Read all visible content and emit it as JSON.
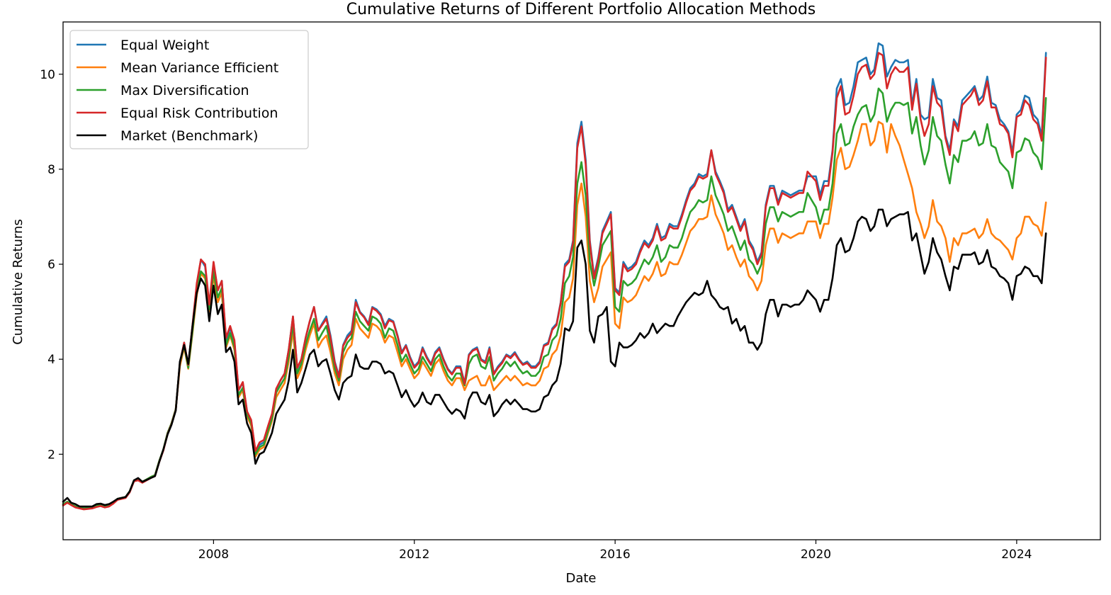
{
  "chart_data": {
    "type": "line",
    "title": "Cumulative Returns of Different Portfolio Allocation Methods",
    "xlabel": "Date",
    "ylabel": "Cumulative Returns",
    "xlim": [
      "2005-01-01",
      "2025-09-01"
    ],
    "ylim": [
      0.2,
      11.1
    ],
    "x_ticks": [
      "2008-01-01",
      "2012-01-01",
      "2016-01-01",
      "2020-01-01",
      "2024-01-01"
    ],
    "x_tick_labels": [
      "2008",
      "2012",
      "2016",
      "2020",
      "2024"
    ],
    "y_ticks": [
      2,
      4,
      6,
      8,
      10
    ],
    "y_tick_labels": [
      "2",
      "4",
      "6",
      "8",
      "10"
    ],
    "grid": false,
    "legend_position": "top-left",
    "start_date": "2005-01-01",
    "frequency": "monthly",
    "series": [
      {
        "name": "Equal Weight",
        "color": "#1f77b4",
        "values": [
          0.95,
          1.0,
          0.95,
          0.9,
          0.88,
          0.86,
          0.87,
          0.88,
          0.91,
          0.93,
          0.9,
          0.92,
          0.98,
          1.06,
          1.08,
          1.1,
          1.22,
          1.45,
          1.47,
          1.42,
          1.47,
          1.52,
          1.56,
          1.85,
          2.1,
          2.45,
          2.65,
          2.95,
          3.9,
          4.35,
          3.85,
          4.7,
          5.55,
          6.1,
          5.95,
          5.1,
          6.0,
          5.45,
          5.65,
          4.4,
          4.65,
          4.35,
          3.35,
          3.5,
          2.9,
          2.7,
          2.05,
          2.2,
          2.25,
          2.55,
          2.8,
          3.35,
          3.55,
          3.7,
          4.2,
          4.9,
          3.8,
          4.0,
          4.45,
          4.8,
          5.1,
          4.6,
          4.75,
          4.9,
          4.5,
          3.95,
          3.65,
          4.3,
          4.5,
          4.6,
          5.25,
          5.0,
          4.9,
          4.75,
          5.1,
          5.05,
          4.95,
          4.7,
          4.85,
          4.8,
          4.5,
          4.15,
          4.3,
          4.05,
          3.85,
          3.95,
          4.25,
          4.05,
          3.9,
          4.15,
          4.25,
          4.0,
          3.8,
          3.7,
          3.85,
          3.85,
          3.5,
          4.1,
          4.2,
          4.25,
          4.0,
          3.95,
          4.25,
          3.7,
          3.85,
          3.95,
          4.1,
          4.05,
          4.15,
          4.0,
          3.9,
          3.95,
          3.85,
          3.85,
          3.95,
          4.3,
          4.35,
          4.65,
          4.75,
          5.2,
          6.0,
          6.1,
          6.5,
          8.55,
          9.0,
          8.2,
          6.5,
          5.75,
          6.15,
          6.7,
          6.9,
          7.1,
          5.5,
          5.4,
          6.05,
          5.9,
          5.95,
          6.05,
          6.3,
          6.5,
          6.4,
          6.55,
          6.85,
          6.55,
          6.6,
          6.85,
          6.8,
          6.8,
          7.05,
          7.35,
          7.6,
          7.7,
          7.9,
          7.85,
          7.9,
          8.4,
          7.95,
          7.75,
          7.55,
          7.15,
          7.25,
          7.0,
          6.75,
          6.95,
          6.5,
          6.35,
          6.05,
          6.25,
          7.25,
          7.65,
          7.65,
          7.3,
          7.55,
          7.5,
          7.45,
          7.5,
          7.55,
          7.55,
          7.85,
          7.85,
          7.85,
          7.45,
          7.75,
          7.75,
          8.4,
          9.7,
          9.9,
          9.35,
          9.4,
          9.75,
          10.25,
          10.3,
          10.35,
          10.0,
          10.1,
          10.65,
          10.6,
          9.95,
          10.15,
          10.3,
          10.25,
          10.25,
          10.3,
          9.35,
          9.9,
          9.15,
          9.05,
          9.1,
          9.9,
          9.5,
          9.45,
          8.7,
          8.4,
          9.05,
          8.9,
          9.45,
          9.55,
          9.65,
          9.75,
          9.45,
          9.55,
          9.95,
          9.4,
          9.35,
          9.05,
          8.95,
          8.8,
          8.35,
          9.15,
          9.25,
          9.55,
          9.5,
          9.15,
          9.05,
          8.7,
          10.45
        ]
      },
      {
        "name": "Mean Variance Efficient",
        "color": "#ff7f0e",
        "values": [
          0.95,
          1.0,
          0.95,
          0.9,
          0.88,
          0.86,
          0.87,
          0.88,
          0.91,
          0.93,
          0.9,
          0.92,
          0.98,
          1.06,
          1.08,
          1.1,
          1.22,
          1.45,
          1.47,
          1.42,
          1.47,
          1.52,
          1.56,
          1.85,
          2.1,
          2.45,
          2.65,
          2.95,
          3.85,
          4.25,
          3.8,
          4.55,
          5.35,
          5.8,
          5.7,
          5.0,
          5.75,
          5.2,
          5.4,
          4.25,
          4.5,
          4.2,
          3.2,
          3.35,
          2.8,
          2.6,
          1.95,
          2.1,
          2.15,
          2.45,
          2.7,
          3.2,
          3.35,
          3.5,
          3.95,
          4.6,
          3.6,
          3.8,
          4.2,
          4.5,
          4.75,
          4.25,
          4.4,
          4.5,
          4.15,
          3.7,
          3.45,
          4.0,
          4.2,
          4.3,
          4.85,
          4.65,
          4.55,
          4.45,
          4.75,
          4.7,
          4.6,
          4.35,
          4.5,
          4.45,
          4.15,
          3.85,
          4.0,
          3.8,
          3.6,
          3.7,
          3.95,
          3.8,
          3.65,
          3.9,
          4.0,
          3.75,
          3.55,
          3.45,
          3.6,
          3.6,
          3.35,
          3.55,
          3.6,
          3.65,
          3.45,
          3.45,
          3.65,
          3.35,
          3.45,
          3.55,
          3.65,
          3.55,
          3.65,
          3.55,
          3.45,
          3.5,
          3.45,
          3.45,
          3.55,
          3.8,
          3.85,
          4.1,
          4.2,
          4.5,
          5.2,
          5.3,
          5.7,
          7.25,
          7.7,
          7.0,
          5.65,
          5.2,
          5.5,
          5.95,
          6.1,
          6.25,
          4.75,
          4.65,
          5.3,
          5.2,
          5.25,
          5.35,
          5.55,
          5.75,
          5.65,
          5.8,
          6.05,
          5.75,
          5.8,
          6.05,
          6.0,
          6.0,
          6.2,
          6.45,
          6.7,
          6.8,
          6.95,
          6.95,
          7.0,
          7.45,
          7.05,
          6.85,
          6.65,
          6.3,
          6.4,
          6.15,
          5.95,
          6.1,
          5.75,
          5.65,
          5.45,
          5.65,
          6.4,
          6.75,
          6.75,
          6.45,
          6.65,
          6.6,
          6.55,
          6.6,
          6.65,
          6.65,
          6.9,
          6.9,
          6.9,
          6.55,
          6.85,
          6.85,
          7.4,
          8.2,
          8.45,
          8.0,
          8.05,
          8.3,
          8.6,
          8.95,
          8.95,
          8.5,
          8.6,
          9.0,
          8.95,
          8.35,
          8.95,
          8.7,
          8.5,
          8.2,
          7.9,
          7.6,
          7.1,
          6.85,
          6.55,
          6.8,
          7.35,
          6.9,
          6.8,
          6.55,
          6.05,
          6.55,
          6.4,
          6.65,
          6.65,
          6.7,
          6.75,
          6.55,
          6.65,
          6.95,
          6.65,
          6.55,
          6.5,
          6.4,
          6.3,
          6.1,
          6.55,
          6.65,
          7.0,
          7.0,
          6.85,
          6.8,
          6.6,
          7.3
        ]
      },
      {
        "name": "Max Diversification",
        "color": "#2ca02c",
        "values": [
          0.95,
          1.0,
          0.95,
          0.9,
          0.88,
          0.86,
          0.87,
          0.88,
          0.91,
          0.93,
          0.9,
          0.92,
          0.98,
          1.06,
          1.08,
          1.1,
          1.22,
          1.45,
          1.47,
          1.42,
          1.47,
          1.52,
          1.56,
          1.85,
          2.1,
          2.45,
          2.65,
          2.95,
          3.9,
          4.3,
          3.82,
          4.6,
          5.45,
          5.85,
          5.75,
          5.05,
          5.85,
          5.3,
          5.5,
          4.3,
          4.55,
          4.25,
          3.25,
          3.4,
          2.85,
          2.65,
          2.0,
          2.15,
          2.2,
          2.5,
          2.75,
          3.3,
          3.45,
          3.6,
          4.05,
          4.75,
          3.7,
          3.9,
          4.3,
          4.6,
          4.85,
          4.4,
          4.55,
          4.7,
          4.3,
          3.8,
          3.55,
          4.15,
          4.35,
          4.45,
          5.0,
          4.8,
          4.7,
          4.6,
          4.9,
          4.85,
          4.75,
          4.45,
          4.65,
          4.6,
          4.3,
          3.95,
          4.1,
          3.9,
          3.7,
          3.8,
          4.05,
          3.9,
          3.75,
          4.0,
          4.1,
          3.85,
          3.65,
          3.55,
          3.7,
          3.7,
          3.45,
          3.9,
          4.05,
          4.1,
          3.85,
          3.8,
          4.05,
          3.55,
          3.7,
          3.8,
          3.95,
          3.85,
          3.95,
          3.8,
          3.7,
          3.75,
          3.65,
          3.65,
          3.75,
          4.05,
          4.1,
          4.4,
          4.5,
          4.85,
          5.6,
          5.75,
          6.15,
          7.7,
          8.15,
          7.45,
          6.05,
          5.55,
          5.95,
          6.4,
          6.55,
          6.7,
          5.1,
          5.0,
          5.65,
          5.55,
          5.6,
          5.7,
          5.9,
          6.1,
          6.0,
          6.15,
          6.4,
          6.05,
          6.15,
          6.4,
          6.35,
          6.35,
          6.55,
          6.85,
          7.1,
          7.2,
          7.35,
          7.3,
          7.35,
          7.85,
          7.45,
          7.25,
          7.05,
          6.7,
          6.8,
          6.55,
          6.3,
          6.5,
          6.1,
          6.0,
          5.8,
          6.0,
          6.85,
          7.2,
          7.2,
          6.9,
          7.1,
          7.05,
          7.0,
          7.05,
          7.1,
          7.1,
          7.5,
          7.35,
          7.2,
          6.85,
          7.15,
          7.15,
          7.7,
          8.75,
          8.95,
          8.5,
          8.55,
          8.9,
          9.15,
          9.3,
          9.35,
          9.0,
          9.15,
          9.7,
          9.6,
          9.0,
          9.25,
          9.4,
          9.4,
          9.35,
          9.4,
          8.75,
          9.1,
          8.5,
          8.1,
          8.4,
          9.1,
          8.7,
          8.6,
          8.1,
          7.7,
          8.3,
          8.15,
          8.6,
          8.6,
          8.65,
          8.8,
          8.5,
          8.55,
          8.95,
          8.5,
          8.45,
          8.15,
          8.05,
          7.95,
          7.6,
          8.35,
          8.4,
          8.65,
          8.6,
          8.35,
          8.25,
          8.0,
          9.5
        ]
      },
      {
        "name": "Equal Risk Contribution",
        "color": "#d62728",
        "values": [
          0.92,
          0.98,
          0.93,
          0.88,
          0.86,
          0.84,
          0.85,
          0.86,
          0.89,
          0.91,
          0.88,
          0.9,
          0.96,
          1.04,
          1.06,
          1.08,
          1.2,
          1.43,
          1.45,
          1.4,
          1.45,
          1.5,
          1.54,
          1.83,
          2.08,
          2.43,
          2.63,
          2.93,
          3.92,
          4.35,
          3.88,
          4.72,
          5.6,
          6.1,
          6.0,
          5.15,
          6.05,
          5.45,
          5.65,
          4.45,
          4.7,
          4.4,
          3.35,
          3.52,
          2.9,
          2.72,
          2.07,
          2.25,
          2.3,
          2.6,
          2.85,
          3.38,
          3.55,
          3.7,
          4.2,
          4.9,
          3.82,
          4.0,
          4.45,
          4.8,
          5.1,
          4.6,
          4.72,
          4.85,
          4.45,
          3.92,
          3.62,
          4.28,
          4.45,
          4.55,
          5.2,
          4.98,
          4.88,
          4.72,
          5.08,
          5.02,
          4.92,
          4.65,
          4.82,
          4.78,
          4.48,
          4.12,
          4.28,
          4.02,
          3.82,
          3.92,
          4.22,
          4.02,
          3.88,
          4.12,
          4.22,
          3.98,
          3.78,
          3.68,
          3.82,
          3.82,
          3.48,
          4.08,
          4.18,
          4.22,
          3.98,
          3.92,
          4.22,
          3.68,
          3.82,
          3.92,
          4.08,
          4.02,
          4.12,
          3.98,
          3.88,
          3.92,
          3.82,
          3.82,
          3.92,
          4.28,
          4.32,
          4.62,
          4.72,
          5.18,
          5.95,
          6.05,
          6.45,
          8.45,
          8.9,
          8.1,
          6.45,
          5.7,
          6.1,
          6.65,
          6.85,
          7.05,
          5.45,
          5.35,
          6.0,
          5.85,
          5.9,
          6.0,
          6.25,
          6.45,
          6.35,
          6.5,
          6.8,
          6.5,
          6.55,
          6.8,
          6.75,
          6.75,
          7.0,
          7.3,
          7.55,
          7.65,
          7.85,
          7.8,
          7.85,
          8.4,
          7.9,
          7.7,
          7.5,
          7.1,
          7.2,
          6.95,
          6.7,
          6.9,
          6.45,
          6.3,
          6.0,
          6.2,
          7.2,
          7.6,
          7.6,
          7.25,
          7.5,
          7.45,
          7.4,
          7.45,
          7.5,
          7.5,
          7.95,
          7.85,
          7.75,
          7.35,
          7.65,
          7.65,
          8.35,
          9.5,
          9.75,
          9.15,
          9.2,
          9.55,
          10.0,
          10.15,
          10.2,
          9.9,
          10.0,
          10.45,
          10.4,
          9.7,
          10.0,
          10.15,
          10.05,
          10.05,
          10.15,
          9.25,
          9.8,
          9.05,
          8.7,
          8.95,
          9.75,
          9.4,
          9.3,
          8.65,
          8.3,
          9.0,
          8.8,
          9.35,
          9.45,
          9.55,
          9.7,
          9.35,
          9.45,
          9.85,
          9.3,
          9.3,
          8.95,
          8.9,
          8.75,
          8.25,
          9.1,
          9.15,
          9.45,
          9.35,
          9.05,
          8.95,
          8.6,
          10.35
        ]
      },
      {
        "name": "Market (Benchmark)",
        "color": "#000000",
        "values": [
          1.0,
          1.08,
          0.98,
          0.95,
          0.9,
          0.9,
          0.9,
          0.9,
          0.95,
          0.96,
          0.93,
          0.95,
          1.0,
          1.06,
          1.08,
          1.1,
          1.22,
          1.45,
          1.5,
          1.42,
          1.46,
          1.5,
          1.54,
          1.83,
          2.1,
          2.42,
          2.62,
          2.92,
          3.95,
          4.3,
          3.9,
          4.7,
          5.4,
          5.7,
          5.55,
          4.8,
          5.55,
          4.95,
          5.15,
          4.15,
          4.25,
          3.95,
          3.05,
          3.15,
          2.65,
          2.45,
          1.8,
          2.0,
          2.05,
          2.25,
          2.45,
          2.85,
          3.0,
          3.15,
          3.55,
          4.2,
          3.3,
          3.5,
          3.8,
          4.1,
          4.2,
          3.85,
          3.95,
          4.0,
          3.7,
          3.35,
          3.15,
          3.5,
          3.6,
          3.65,
          4.1,
          3.85,
          3.8,
          3.8,
          3.95,
          3.95,
          3.9,
          3.7,
          3.75,
          3.7,
          3.45,
          3.2,
          3.35,
          3.15,
          3.0,
          3.1,
          3.3,
          3.1,
          3.05,
          3.25,
          3.25,
          3.1,
          2.95,
          2.85,
          2.95,
          2.9,
          2.75,
          3.15,
          3.3,
          3.3,
          3.1,
          3.05,
          3.25,
          2.8,
          2.9,
          3.05,
          3.15,
          3.05,
          3.15,
          3.05,
          2.95,
          2.95,
          2.9,
          2.9,
          2.95,
          3.2,
          3.25,
          3.45,
          3.55,
          3.9,
          4.65,
          4.6,
          4.8,
          6.35,
          6.5,
          6.0,
          4.6,
          4.35,
          4.9,
          4.95,
          5.1,
          3.95,
          3.85,
          4.35,
          4.25,
          4.25,
          4.3,
          4.4,
          4.55,
          4.45,
          4.55,
          4.75,
          4.55,
          4.65,
          4.75,
          4.7,
          4.7,
          4.9,
          5.05,
          5.2,
          5.3,
          5.4,
          5.35,
          5.4,
          5.65,
          5.35,
          5.25,
          5.1,
          5.05,
          5.1,
          4.75,
          4.85,
          4.6,
          4.7,
          4.35,
          4.35,
          4.2,
          4.35,
          4.95,
          5.25,
          5.25,
          4.9,
          5.15,
          5.15,
          5.1,
          5.15,
          5.15,
          5.25,
          5.45,
          5.35,
          5.25,
          5.0,
          5.25,
          5.25,
          5.7,
          6.4,
          6.55,
          6.25,
          6.3,
          6.55,
          6.9,
          7.0,
          6.95,
          6.7,
          6.8,
          7.15,
          7.15,
          6.8,
          6.95,
          7.0,
          7.05,
          7.05,
          7.1,
          6.5,
          6.65,
          6.2,
          5.8,
          6.05,
          6.55,
          6.25,
          6.1,
          5.75,
          5.45,
          5.95,
          5.9,
          6.2,
          6.2,
          6.2,
          6.25,
          6.0,
          6.05,
          6.3,
          5.95,
          5.9,
          5.75,
          5.7,
          5.6,
          5.25,
          5.75,
          5.8,
          5.95,
          5.9,
          5.75,
          5.75,
          5.6,
          6.65
        ]
      }
    ]
  }
}
